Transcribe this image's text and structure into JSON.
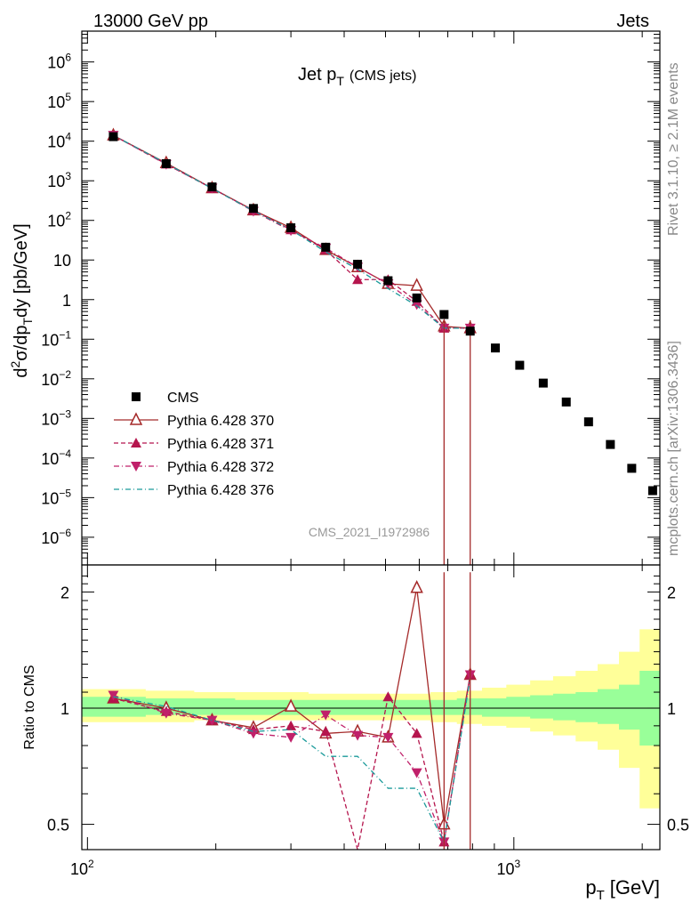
{
  "header": {
    "left": "13000 GeV pp",
    "right": "Jets"
  },
  "side_text": {
    "rivet": "Rivet 3.1.10, ≥ 2.1M events",
    "mcplots": "mcplots.cern.ch [arXiv:1306.3436]"
  },
  "chart_data": [
    {
      "type": "scatter",
      "panel": "main",
      "title_main": "Jet p",
      "title_sub": "T",
      "title_note": "(CMS jets)",
      "watermark": "CMS_2021_I1972986",
      "ylabel": "d²σ/dp_T dy [pb/GeV]",
      "y_scale": "log",
      "x_scale": "log",
      "ylim": [
        2e-07,
        6000000
      ],
      "xlim": [
        97,
        2200
      ],
      "y_ticks": [
        {
          "v": 1000000.0,
          "base": "10",
          "exp": "6"
        },
        {
          "v": 100000.0,
          "base": "10",
          "exp": "5"
        },
        {
          "v": 10000.0,
          "base": "10",
          "exp": "4"
        },
        {
          "v": 1000.0,
          "base": "10",
          "exp": "3"
        },
        {
          "v": 100,
          "base": "10",
          "exp": "2"
        },
        {
          "v": 10,
          "base": "10",
          "exp": ""
        },
        {
          "v": 1,
          "base": "1",
          "exp": ""
        },
        {
          "v": 0.1,
          "base": "10",
          "exp": "−1"
        },
        {
          "v": 0.01,
          "base": "10",
          "exp": "−2"
        },
        {
          "v": 0.001,
          "base": "10",
          "exp": "−3"
        },
        {
          "v": 0.0001,
          "base": "10",
          "exp": "−4"
        },
        {
          "v": 1e-05,
          "base": "10",
          "exp": "−5"
        },
        {
          "v": 1e-06,
          "base": "10",
          "exp": "−6"
        }
      ],
      "legend_position": "bottom-left",
      "series": [
        {
          "name": "CMS",
          "color": "#000000",
          "marker": "square",
          "style": "none",
          "x": [
            115,
            153,
            196,
            245,
            300,
            362,
            430,
            507,
            592,
            686,
            790,
            905,
            1032,
            1172,
            1327,
            1497,
            1684,
            1890,
            2116
          ],
          "y": [
            13000,
            2700,
            700,
            200,
            65,
            21,
            7.8,
            3.0,
            1.1,
            0.42,
            0.16,
            0.06,
            0.022,
            0.0078,
            0.0026,
            0.00082,
            0.00022,
            5.5e-05,
            1.5e-05
          ]
        },
        {
          "name": "Pythia 6.428 370",
          "color": "#a52a2a",
          "marker": "triangle-up-open",
          "style": "solid",
          "x": [
            115,
            153,
            196,
            245,
            300,
            362,
            430,
            507,
            592,
            686,
            790
          ],
          "y": [
            14000,
            2800,
            650,
            180,
            65,
            18,
            6.6,
            2.5,
            2.25,
            0.21,
            0.19
          ]
        },
        {
          "name": "Pythia 6.428 371",
          "color": "#b5154d",
          "marker": "triangle-up",
          "style": "dashed",
          "x": [
            115,
            153,
            196,
            245,
            300,
            362,
            430,
            507,
            592,
            686,
            790
          ],
          "y": [
            14000,
            2650,
            640,
            180,
            58,
            18,
            3.2,
            3.2,
            0.9,
            0.19,
            0.19
          ]
        },
        {
          "name": "Pythia 6.428 372",
          "color": "#c0206a",
          "marker": "triangle-down",
          "style": "dashdot",
          "x": [
            115,
            153,
            196,
            245,
            300,
            362,
            430,
            507,
            592,
            686,
            790
          ],
          "y": [
            14000,
            2600,
            650,
            170,
            55,
            20,
            6.6,
            2.5,
            0.75,
            0.19,
            0.19
          ]
        },
        {
          "name": "Pythia 6.428 376",
          "color": "#1a9a9a",
          "marker": "none",
          "style": "dashdot",
          "x": [
            115,
            153,
            196,
            245,
            300,
            362,
            430,
            507,
            592,
            686,
            790
          ],
          "y": [
            14000,
            2750,
            640,
            175,
            58,
            16,
            5.9,
            1.9,
            0.7,
            0.19,
            0.19
          ]
        }
      ]
    },
    {
      "type": "line",
      "panel": "ratio",
      "ylabel": "Ratio to CMS",
      "xlabel_main": "p",
      "xlabel_sub": "T",
      "xlabel_unit": "[GeV]",
      "x_scale": "log",
      "y_scale": "log",
      "ylim": [
        0.43,
        2.35
      ],
      "y_ticks": [
        "0.5",
        "1",
        "2"
      ],
      "x_ticks": [
        {
          "v": 100,
          "base": "10",
          "exp": "2"
        },
        {
          "v": 1000,
          "base": "10",
          "exp": "3"
        }
      ],
      "band_edges": [
        97,
        137,
        178,
        222,
        275,
        330,
        395,
        467,
        548,
        637,
        735,
        842,
        960,
        1092,
        1236,
        1396,
        1572,
        1764,
        1972,
        2200
      ],
      "band_inner": [
        [
          0.95,
          1.07
        ],
        [
          0.96,
          1.06
        ],
        [
          0.96,
          1.06
        ],
        [
          0.96,
          1.05
        ],
        [
          0.96,
          1.05
        ],
        [
          0.96,
          1.05
        ],
        [
          0.96,
          1.05
        ],
        [
          0.96,
          1.05
        ],
        [
          0.96,
          1.05
        ],
        [
          0.96,
          1.05
        ],
        [
          0.96,
          1.06
        ],
        [
          0.95,
          1.06
        ],
        [
          0.95,
          1.07
        ],
        [
          0.94,
          1.08
        ],
        [
          0.93,
          1.09
        ],
        [
          0.92,
          1.1
        ],
        [
          0.91,
          1.12
        ],
        [
          0.88,
          1.15
        ],
        [
          0.8,
          1.25
        ]
      ],
      "band_outer": [
        [
          0.92,
          1.12
        ],
        [
          0.92,
          1.11
        ],
        [
          0.93,
          1.1
        ],
        [
          0.93,
          1.1
        ],
        [
          0.93,
          1.1
        ],
        [
          0.93,
          1.09
        ],
        [
          0.93,
          1.09
        ],
        [
          0.93,
          1.09
        ],
        [
          0.93,
          1.09
        ],
        [
          0.92,
          1.1
        ],
        [
          0.91,
          1.11
        ],
        [
          0.9,
          1.13
        ],
        [
          0.89,
          1.15
        ],
        [
          0.87,
          1.18
        ],
        [
          0.85,
          1.21
        ],
        [
          0.82,
          1.25
        ],
        [
          0.78,
          1.3
        ],
        [
          0.7,
          1.4
        ],
        [
          0.55,
          1.6
        ]
      ],
      "series": [
        {
          "name": "Pythia 6.428 370",
          "x": [
            115,
            153,
            196,
            245,
            300,
            362,
            430,
            507,
            592,
            686,
            790
          ],
          "y": [
            1.06,
            1.0,
            0.93,
            0.89,
            1.01,
            0.86,
            0.87,
            0.84,
            2.05,
            0.5,
            1.22
          ]
        },
        {
          "name": "Pythia 6.428 371",
          "x": [
            115,
            153,
            196,
            245,
            300,
            362,
            430,
            507,
            592,
            686,
            790
          ],
          "y": [
            1.06,
            0.98,
            0.93,
            0.88,
            0.9,
            0.87,
            0.41,
            1.07,
            0.86,
            0.45,
            1.22
          ]
        },
        {
          "name": "Pythia 6.428 372",
          "x": [
            115,
            153,
            196,
            245,
            300,
            362,
            430,
            507,
            592,
            686,
            790
          ],
          "y": [
            1.08,
            0.97,
            0.93,
            0.86,
            0.84,
            0.96,
            0.85,
            0.84,
            0.68,
            0.45,
            1.22
          ]
        },
        {
          "name": "Pythia 6.428 376",
          "x": [
            115,
            153,
            196,
            245,
            300,
            362,
            430,
            507,
            592,
            686,
            790
          ],
          "y": [
            1.07,
            1.01,
            0.93,
            0.87,
            0.88,
            0.75,
            0.75,
            0.62,
            0.62,
            0.45,
            1.2
          ]
        }
      ]
    }
  ]
}
